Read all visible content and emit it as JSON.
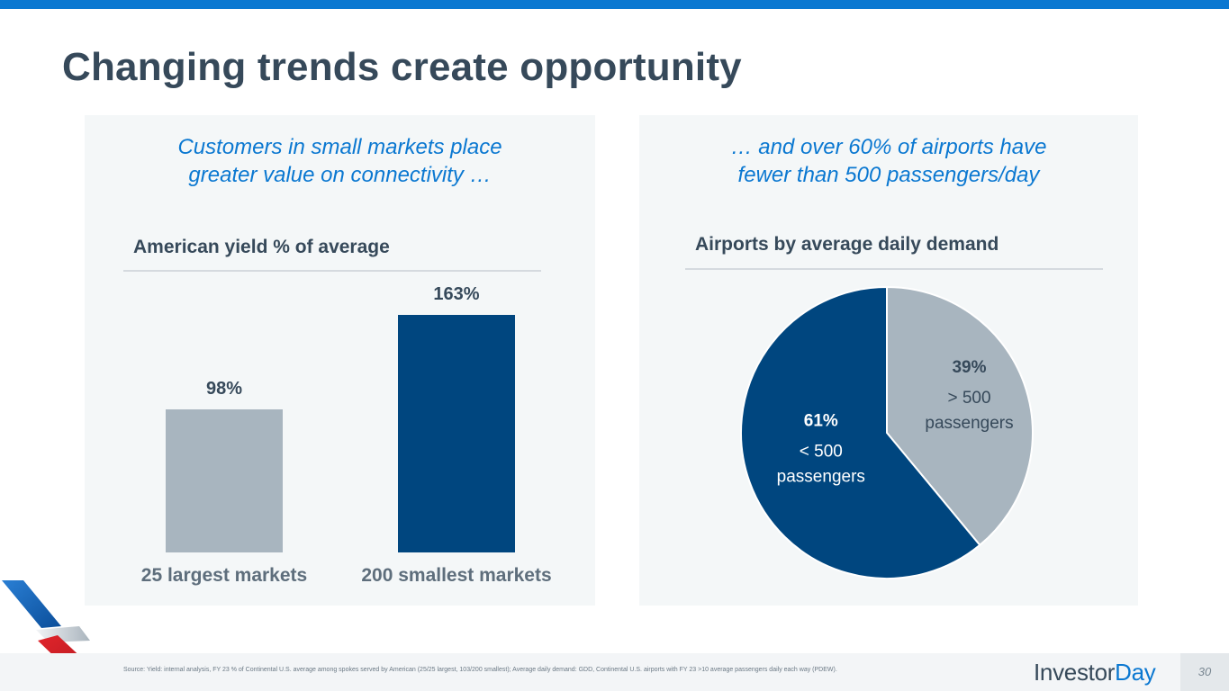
{
  "slide": {
    "title": "Changing trends create opportunity",
    "page_number": "30"
  },
  "left_panel": {
    "subtitle_line1": "Customers in small markets place",
    "subtitle_line2": "greater value on connectivity …"
  },
  "right_panel": {
    "subtitle_line1": "… and over 60% of airports have",
    "subtitle_line2": "fewer than 500 passengers/day"
  },
  "footer": {
    "source": "Source: Yield: internal analysis, FY 23 % of Continental U.S. average among spokes served by American (25/25 largest, 103/200 smallest); Average daily demand: GDD, Continental U.S. airports with FY 23 >10 average passengers daily each way (PDEW).",
    "brand_part1": "Investor",
    "brand_part2": "Day",
    "logo_mark": "®"
  },
  "colors": {
    "accent_blue": "#0B78D1",
    "navy": "#00467F",
    "gray_bar": "#A8B5BF",
    "title_text": "#36495A"
  },
  "chart_data": [
    {
      "type": "bar",
      "title": "American yield % of average",
      "categories": [
        "25 largest markets",
        "200 smallest markets"
      ],
      "values": [
        98,
        163
      ],
      "value_labels": [
        "98%",
        "163%"
      ],
      "unit": "%",
      "ylim": [
        0,
        163
      ],
      "colors": [
        "#A8B5BF",
        "#00467F"
      ],
      "xlabel": "",
      "ylabel": "",
      "grid": false
    },
    {
      "type": "pie",
      "title": "Airports by average daily demand",
      "slices": [
        {
          "label_line1": "> 500",
          "label_line2": "passengers",
          "value": 39,
          "pct_label": "39%",
          "color": "#A8B5BF"
        },
        {
          "label_line1": "< 500",
          "label_line2": "passengers",
          "value": 61,
          "pct_label": "61%",
          "color": "#00467F"
        }
      ]
    }
  ]
}
